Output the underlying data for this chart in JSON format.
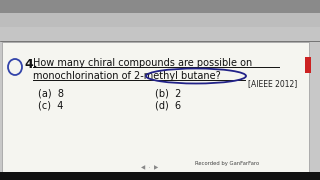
{
  "background_color": "#c8c8c8",
  "white_box_color": "#f5f5f0",
  "question_number": "4.",
  "question_line1": "How many chiral compounds are possible on",
  "question_line2": "monochlorination of 2-methyl butane?",
  "tag": "[AIEEE 2012]",
  "opt_a": "(a)  8",
  "opt_b": "(b)  2",
  "opt_c": "(c)  4",
  "opt_d": "(d)  6",
  "text_color": "#111111",
  "tag_color": "#222222",
  "underline_color": "#111111",
  "circle_color": "#222288",
  "q_circle_color": "#3344aa",
  "red_mark_color": "#cc2222",
  "toolbar_top_color": "#888888",
  "toolbar_mid_color": "#aaaaaa",
  "toolbar_bot_color": "#bbbbbb",
  "watermark_color": "#444444",
  "watermark_text": "Recorded by GanFarFaro",
  "black_bar_color": "#111111"
}
